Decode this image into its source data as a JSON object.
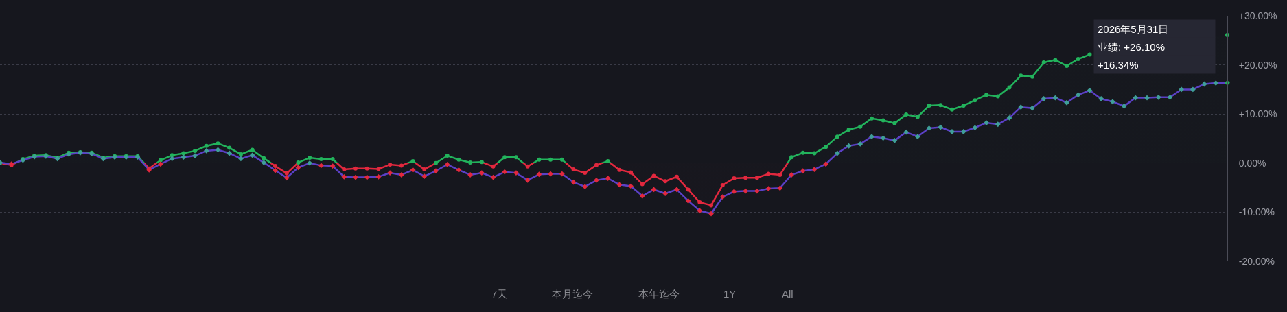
{
  "chart_data": {
    "type": "line",
    "categories": [
      null,
      null,
      null,
      null,
      null,
      null,
      null,
      null,
      null,
      null,
      null,
      null,
      null,
      null,
      null,
      null,
      null,
      null,
      null,
      null,
      null,
      null,
      null,
      null,
      null,
      null,
      null,
      null,
      null,
      null,
      null,
      null,
      null,
      null,
      null,
      null,
      null,
      null,
      null,
      null,
      null,
      null,
      null,
      null,
      null,
      null,
      null,
      null,
      null,
      null,
      null,
      null,
      null,
      null,
      null,
      null,
      null,
      null,
      null,
      null,
      null,
      null,
      null,
      null,
      null,
      null,
      null,
      null,
      null,
      null,
      null,
      null,
      null,
      null,
      null,
      null,
      null,
      null,
      null,
      null,
      null,
      null,
      null,
      null,
      null,
      null,
      null,
      null,
      null,
      null,
      null,
      null,
      null,
      null,
      null,
      null,
      null,
      null,
      null,
      null,
      null,
      null,
      null,
      null,
      null,
      null,
      null,
      null
    ],
    "series": [
      {
        "type": "area",
        "color": "#22b35c",
        "marker": "circle",
        "values": [
          0.0,
          -0.4,
          0.8,
          1.5,
          1.6,
          1.1,
          2.1,
          2.2,
          2.1,
          1.1,
          1.4,
          1.4,
          1.4,
          -1.1,
          0.6,
          1.6,
          2.0,
          2.5,
          3.5,
          4.0,
          3.1,
          1.8,
          2.7,
          1.0,
          -0.6,
          -2.1,
          0.1,
          1.1,
          0.8,
          0.8,
          -1.3,
          -1.1,
          -1.1,
          -1.2,
          -0.3,
          -0.5,
          0.4,
          -1.3,
          0.0,
          1.5,
          0.7,
          0.1,
          0.2,
          -0.7,
          1.2,
          1.2,
          -0.7,
          0.7,
          0.7,
          0.7,
          -1.3,
          -2.0,
          -0.4,
          0.4,
          -1.4,
          -1.9,
          -4.3,
          -2.6,
          -3.7,
          -2.8,
          -5.4,
          -8.0,
          -8.6,
          -4.5,
          -3.1,
          -3.0,
          -3.0,
          -2.2,
          -2.4,
          1.2,
          2.1,
          2.0,
          3.3,
          5.4,
          6.8,
          7.4,
          9.1,
          8.7,
          8.1,
          9.9,
          9.4,
          11.7,
          11.8,
          10.9,
          11.7,
          12.8,
          13.9,
          13.6,
          15.4,
          17.8,
          17.6,
          20.5,
          21.0,
          19.8,
          21.2,
          22.1,
          null,
          null,
          null,
          null,
          null,
          null,
          null,
          null,
          null,
          null,
          null,
          26.1
        ],
        "colors": [
          "#22b35c",
          "#e2283e",
          "#22b35c",
          "#22b35c",
          "#22b35c",
          "#22b35c",
          "#22b35c",
          "#22b35c",
          "#22b35c",
          "#22b35c",
          "#22b35c",
          "#22b35c",
          "#22b35c",
          "#e2283e",
          "#22b35c",
          "#22b35c",
          "#22b35c",
          "#22b35c",
          "#22b35c",
          "#22b35c",
          "#22b35c",
          "#22b35c",
          "#22b35c",
          "#22b35c",
          "#e2283e",
          "#e2283e",
          "#22b35c",
          "#22b35c",
          "#22b35c",
          "#22b35c",
          "#e2283e",
          "#e2283e",
          "#e2283e",
          "#e2283e",
          "#e2283e",
          "#e2283e",
          "#22b35c",
          "#e2283e",
          "#22b35c",
          "#22b35c",
          "#22b35c",
          "#22b35c",
          "#22b35c",
          "#e2283e",
          "#22b35c",
          "#22b35c",
          "#e2283e",
          "#22b35c",
          "#22b35c",
          "#22b35c",
          "#e2283e",
          "#e2283e",
          "#e2283e",
          "#22b35c",
          "#e2283e",
          "#e2283e",
          "#e2283e",
          "#e2283e",
          "#e2283e",
          "#e2283e",
          "#e2283e",
          "#e2283e",
          "#e2283e",
          "#e2283e",
          "#e2283e",
          "#e2283e",
          "#e2283e",
          "#e2283e",
          "#e2283e",
          "#22b35c",
          "#22b35c",
          "#22b35c",
          "#22b35c",
          "#22b35c",
          "#22b35c",
          "#22b35c",
          "#22b35c",
          "#22b35c",
          "#22b35c",
          "#22b35c",
          "#22b35c",
          "#22b35c",
          "#22b35c",
          "#22b35c",
          "#22b35c",
          "#22b35c",
          "#22b35c",
          "#22b35c",
          "#22b35c",
          "#22b35c",
          "#22b35c",
          "#22b35c",
          "#22b35c",
          "#22b35c",
          "#22b35c",
          "#22b35c",
          null,
          null,
          null,
          null,
          null,
          null,
          null,
          null,
          null,
          null,
          null,
          "#22b35c"
        ]
      },
      {
        "color": "#5b40c6",
        "marker": "diamond",
        "values": [
          0.1,
          -0.2,
          0.6,
          1.3,
          1.4,
          0.9,
          1.8,
          2.1,
          1.9,
          0.9,
          1.2,
          1.2,
          1.2,
          -1.4,
          -0.2,
          0.9,
          1.2,
          1.5,
          2.5,
          2.7,
          2.0,
          0.9,
          1.6,
          0.1,
          -1.5,
          -3.0,
          -0.9,
          0.0,
          -0.5,
          -0.6,
          -2.8,
          -2.9,
          -2.9,
          -2.8,
          -2.0,
          -2.4,
          -1.4,
          -2.7,
          -1.6,
          -0.3,
          -1.4,
          -2.4,
          -2.0,
          -2.9,
          -1.8,
          -2.0,
          -3.5,
          -2.3,
          -2.2,
          -2.2,
          -3.9,
          -4.8,
          -3.5,
          -3.1,
          -4.4,
          -4.7,
          -6.7,
          -5.4,
          -6.2,
          -5.4,
          -7.7,
          -9.7,
          -10.3,
          -6.9,
          -5.8,
          -5.7,
          -5.7,
          -5.2,
          -5.1,
          -2.4,
          -1.6,
          -1.3,
          -0.2,
          2.0,
          3.5,
          3.9,
          5.4,
          5.1,
          4.6,
          6.3,
          5.4,
          7.1,
          7.3,
          6.4,
          6.4,
          7.2,
          8.2,
          7.9,
          9.2,
          11.4,
          11.2,
          13.1,
          13.3,
          12.3,
          13.9,
          14.8,
          13.1,
          12.5,
          11.6,
          13.3,
          13.3,
          13.4,
          13.4,
          15.0,
          15.0,
          16.1,
          16.3,
          16.34
        ],
        "colors": [
          "#3f9e98",
          "#e2283e",
          "#3f9e98",
          "#3f9e98",
          "#3f9e98",
          "#3f9e98",
          "#3f9e98",
          "#3f9e98",
          "#3f9e98",
          "#3f9e98",
          "#3f9e98",
          "#3f9e98",
          "#3f9e98",
          "#e2283e",
          "#e2283e",
          "#3f9e98",
          "#3f9e98",
          "#3f9e98",
          "#3f9e98",
          "#3f9e98",
          "#3f9e98",
          "#3f9e98",
          "#3f9e98",
          "#3f9e98",
          "#e2283e",
          "#e2283e",
          "#e2283e",
          "#3f9e98",
          "#e2283e",
          "#e2283e",
          "#e2283e",
          "#e2283e",
          "#e2283e",
          "#e2283e",
          "#e2283e",
          "#e2283e",
          "#e2283e",
          "#e2283e",
          "#e2283e",
          "#e2283e",
          "#e2283e",
          "#e2283e",
          "#e2283e",
          "#e2283e",
          "#e2283e",
          "#e2283e",
          "#e2283e",
          "#e2283e",
          "#e2283e",
          "#e2283e",
          "#e2283e",
          "#e2283e",
          "#e2283e",
          "#e2283e",
          "#e2283e",
          "#e2283e",
          "#e2283e",
          "#e2283e",
          "#e2283e",
          "#e2283e",
          "#e2283e",
          "#e2283e",
          "#e2283e",
          "#e2283e",
          "#e2283e",
          "#e2283e",
          "#e2283e",
          "#e2283e",
          "#e2283e",
          "#e2283e",
          "#e2283e",
          "#e2283e",
          "#e2283e",
          "#3f9e98",
          "#3f9e98",
          "#3f9e98",
          "#3f9e98",
          "#3f9e98",
          "#3f9e98",
          "#3f9e98",
          "#3f9e98",
          "#3f9e98",
          "#3f9e98",
          "#3f9e98",
          "#3f9e98",
          "#3f9e98",
          "#3f9e98",
          "#3f9e98",
          "#3f9e98",
          "#3f9e98",
          "#3f9e98",
          "#3f9e98",
          "#3f9e98",
          "#3f9e98",
          "#3f9e98",
          "#3f9e98",
          "#3f9e98",
          "#3f9e98",
          "#3f9e98",
          "#3f9e98",
          "#3f9e98",
          "#3f9e98",
          "#3f9e98",
          "#3f9e98",
          "#3f9e98",
          "#3f9e98",
          "#3f9e98",
          "#22b35c"
        ]
      }
    ],
    "ylim": [
      -20,
      30
    ],
    "yticks": [
      {
        "value": 30,
        "label": "+30.00%"
      },
      {
        "value": 20,
        "label": "+20.00%"
      },
      {
        "value": 10,
        "label": "+10.00%"
      },
      {
        "value": 0,
        "label": "0.00%"
      },
      {
        "value": -10,
        "label": "-10.00%"
      },
      {
        "value": -20,
        "label": "-20.00%"
      }
    ],
    "grid": "y",
    "tick_labels": "y",
    "annotations": [
      {
        "text": "2026年5月31日"
      },
      {
        "text": "业绩: +26.10%"
      },
      {
        "text": "+16.34%"
      },
      "7天",
      "本月迄今",
      "本年迄今",
      "1Y",
      "All"
    ]
  }
}
